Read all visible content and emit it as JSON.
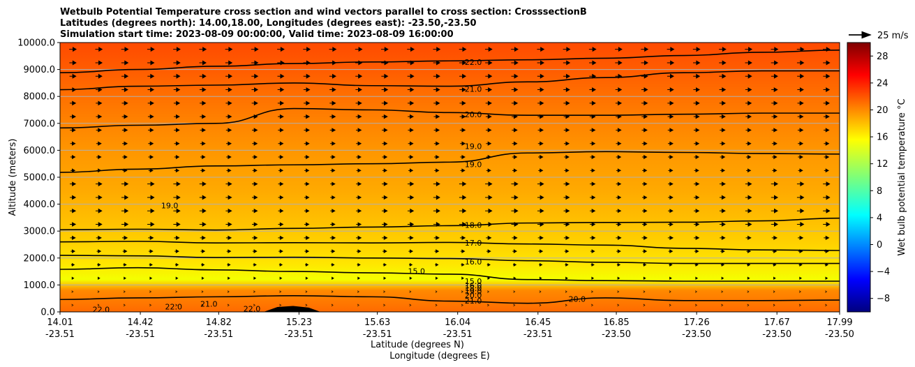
{
  "chart_data": {
    "type": "contour",
    "title_lines": [
      "Wetbulb Potential Temperature cross section and wind vectors parallel to cross section: CrosssectionB",
      "Latitudes (degrees north): 14.00,18.00, Longitudes (degrees east): -23.50,-23.50",
      "Simulation start time: 2023-08-09 00:00:00, Valid time: 2023-08-09 16:00:00"
    ],
    "ylabel": "Altitude (meters)",
    "xlabel_lat": "Latitude (degrees N)",
    "xlabel_lon": "Longitude (degrees E)",
    "ylim": [
      0,
      10000
    ],
    "yticks": [
      "0.0",
      "1000.0",
      "2000.0",
      "3000.0",
      "4000.0",
      "5000.0",
      "6000.0",
      "7000.0",
      "8000.0",
      "9000.0",
      "10000.0"
    ],
    "xlim": [
      14.01,
      17.99
    ],
    "xticks_lat": [
      "14.01",
      "14.42",
      "14.82",
      "15.23",
      "15.63",
      "16.04",
      "16.45",
      "16.85",
      "17.26",
      "17.67",
      "17.99"
    ],
    "xticks_lon": [
      "-23.51",
      "-23.51",
      "-23.51",
      "-23.51",
      "-23.51",
      "-23.51",
      "-23.51",
      "-23.50",
      "-23.50",
      "-23.50",
      "-23.50"
    ],
    "colorbar": {
      "label": "Wet bulb potential temperature $^\\circ$C",
      "label_text": "Wet bulb potential temperature °C",
      "range": [
        -10,
        30
      ],
      "ticks": [
        "−8",
        "−4",
        "0",
        "4",
        "8",
        "12",
        "16",
        "20",
        "24",
        "28"
      ],
      "colormap": "jet"
    },
    "quiver_key": "25 m/s",
    "contours": [
      {
        "level": 22.0,
        "altitude": [
          8880,
          9000,
          9120,
          9220,
          9280,
          9320,
          9360,
          9420,
          9520,
          9640,
          9720
        ]
      },
      {
        "level": 21.0,
        "altitude": [
          8250,
          8380,
          8420,
          8500,
          8400,
          8380,
          8540,
          8700,
          8880,
          8950,
          8950
        ]
      },
      {
        "level": 20.0,
        "altitude": [
          6830,
          6930,
          7000,
          7550,
          7500,
          7400,
          7300,
          7300,
          7340,
          7380,
          7380
        ]
      },
      {
        "level": 19.0,
        "altitude": [
          5180,
          5300,
          5420,
          5460,
          5500,
          5560,
          5900,
          5950,
          5920,
          5880,
          5860
        ]
      },
      {
        "level": 18.0,
        "altitude": [
          3050,
          3070,
          3040,
          3100,
          3150,
          3200,
          3300,
          3320,
          3330,
          3380,
          3480
        ]
      },
      {
        "level": 17.0,
        "altitude": [
          2600,
          2620,
          2560,
          2570,
          2560,
          2580,
          2520,
          2480,
          2360,
          2300,
          2280
        ]
      },
      {
        "level": 16.0,
        "altitude": [
          2100,
          2080,
          2020,
          2030,
          2000,
          1980,
          1900,
          1840,
          1800,
          1800,
          1800
        ]
      },
      {
        "level": 15.0,
        "altitude": [
          1580,
          1640,
          1560,
          1500,
          1450,
          1400,
          1200,
          1160,
          1140,
          1140,
          1140
        ]
      },
      {
        "level": 21.0,
        "altitude": [
          460,
          520,
          560,
          600,
          560,
          400,
          320,
          520,
          420,
          420,
          440
        ]
      }
    ],
    "contour_labels": [
      {
        "text": "22.0",
        "x": 16.12,
        "alt": 9280
      },
      {
        "text": "21.0",
        "x": 16.12,
        "alt": 8280
      },
      {
        "text": "20.0",
        "x": 16.12,
        "alt": 7330
      },
      {
        "text": "19.0",
        "x": 16.12,
        "alt": 6150
      },
      {
        "text": "19.0",
        "x": 16.12,
        "alt": 5480
      },
      {
        "text": "19.0",
        "x": 14.57,
        "alt": 3950
      },
      {
        "text": "18.0",
        "x": 16.12,
        "alt": 3230
      },
      {
        "text": "17.0",
        "x": 16.12,
        "alt": 2570
      },
      {
        "text": "16.0",
        "x": 16.12,
        "alt": 1870
      },
      {
        "text": "15.0",
        "x": 15.83,
        "alt": 1520
      },
      {
        "text": "15.0",
        "x": 16.12,
        "alt": 1140
      },
      {
        "text": "16.0",
        "x": 16.12,
        "alt": 990
      },
      {
        "text": "18.0",
        "x": 16.12,
        "alt": 880
      },
      {
        "text": "19.0",
        "x": 16.12,
        "alt": 760
      },
      {
        "text": "20.0",
        "x": 16.12,
        "alt": 620
      },
      {
        "text": "21.0",
        "x": 16.12,
        "alt": 420
      },
      {
        "text": "20.0",
        "x": 16.65,
        "alt": 480
      },
      {
        "text": "22.0",
        "x": 14.22,
        "alt": 90
      },
      {
        "text": "22.0",
        "x": 14.59,
        "alt": 200
      },
      {
        "text": "21.0",
        "x": 14.77,
        "alt": 300
      },
      {
        "text": "22.0",
        "x": 14.99,
        "alt": 120
      }
    ],
    "terrain": {
      "x": [
        15.05,
        15.12,
        15.2,
        15.28,
        15.34
      ],
      "alt": [
        0,
        180,
        220,
        160,
        0
      ]
    }
  }
}
